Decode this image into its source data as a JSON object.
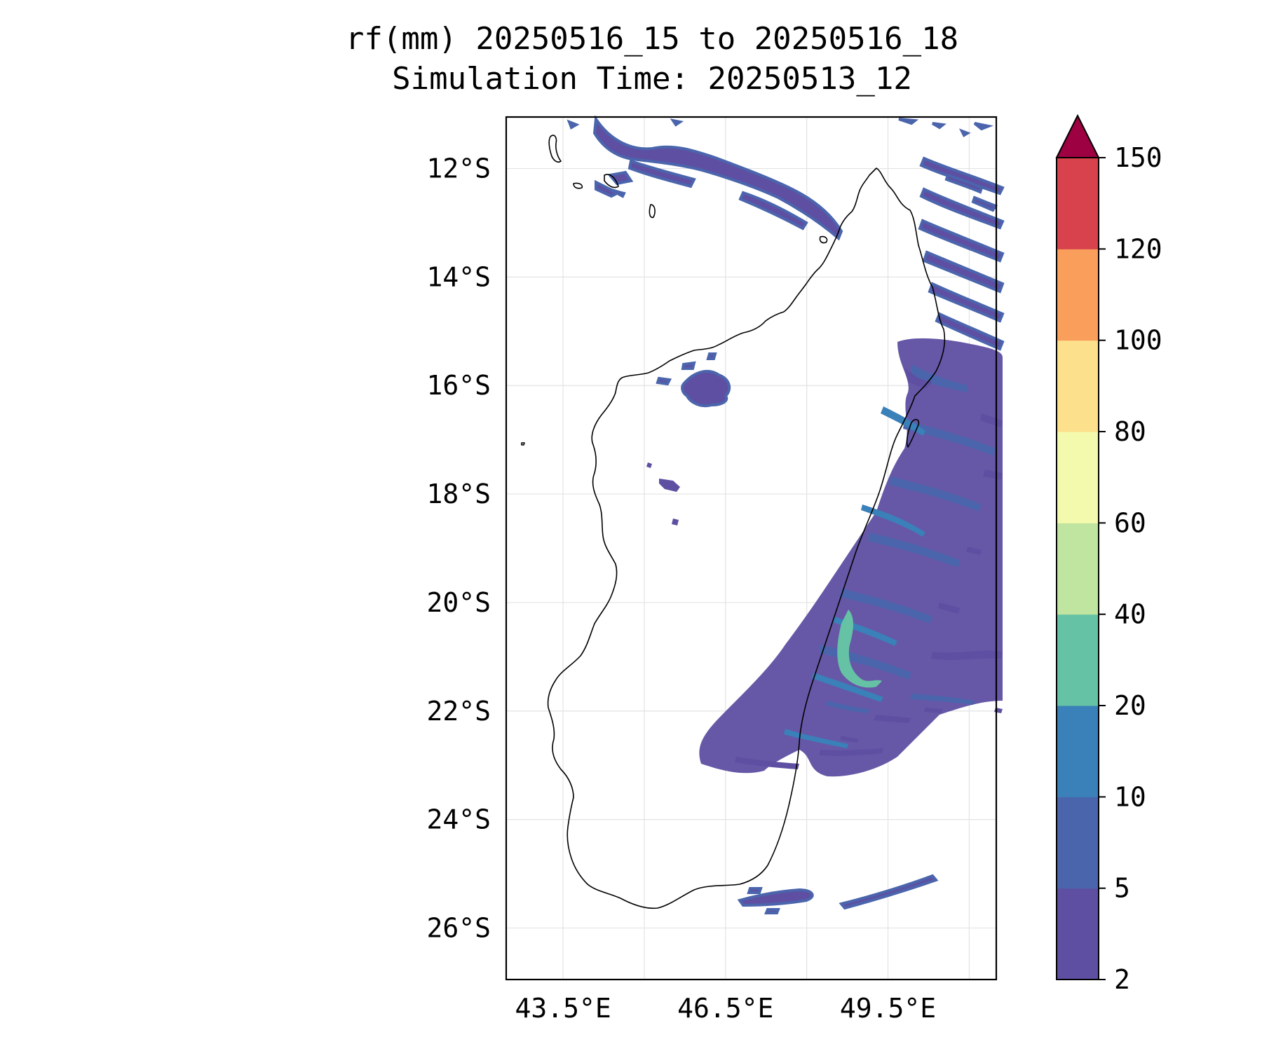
{
  "title": {
    "line1": "rf(mm) 20250516_15 to 20250516_18",
    "line2": "Simulation Time: 20250513_12"
  },
  "map": {
    "extent": {
      "lon_min": 42.45,
      "lon_max": 51.5,
      "lat_min": -26.95,
      "lat_max": -11.05
    },
    "lat_ticks": [
      {
        "value": -12,
        "label": "12°S"
      },
      {
        "value": -14,
        "label": "14°S"
      },
      {
        "value": -16,
        "label": "16°S"
      },
      {
        "value": -18,
        "label": "18°S"
      },
      {
        "value": -20,
        "label": "20°S"
      },
      {
        "value": -22,
        "label": "22°S"
      },
      {
        "value": -24,
        "label": "24°S"
      },
      {
        "value": -26,
        "label": "26°S"
      }
    ],
    "lon_ticks": [
      {
        "value": 43.5,
        "label": "43.5°E"
      },
      {
        "value": 46.5,
        "label": "46.5°E"
      },
      {
        "value": 49.5,
        "label": "49.5°E"
      }
    ],
    "lon_grid": [
      43.5,
      45.0,
      46.5,
      48.0,
      49.5,
      51.0
    ],
    "coastline_color": "#000000",
    "grid_color": "#e3e3e3"
  },
  "colorbar": {
    "levels": [
      "2",
      "5",
      "10",
      "20",
      "40",
      "60",
      "80",
      "100",
      "120",
      "150"
    ],
    "colors": [
      "#5e4fa2",
      "#4b65ad",
      "#3a80b9",
      "#66c2a5",
      "#bfe5a0",
      "#f3faad",
      "#fde08b",
      "#f99e5b",
      "#d7424d"
    ],
    "extend_color": "#9e0142",
    "extend": "max"
  },
  "chart_data": {
    "type": "heatmap",
    "variable": "rf(mm)",
    "units": "mm",
    "period": "20250516_15 to 20250516_18",
    "simulation_time": "20250513_12",
    "levels": [
      2,
      5,
      10,
      20,
      40,
      60,
      80,
      100,
      120,
      150
    ],
    "rain_regions": [
      {
        "area": "north coast band, N of Madagascar",
        "level_min": 2,
        "level_max": 10
      },
      {
        "area": "NE offshore streaks (12.5–15°S, 49.8–51.5°E)",
        "level_min": 2,
        "level_max": 10
      },
      {
        "area": "E coast and offshore (15–22°S)",
        "level_min": 2,
        "level_max": 20
      },
      {
        "area": "SE coast max near 21°S, 48.5°E",
        "level_min": 20,
        "level_max": 40
      },
      {
        "area": "small patch near 16°S, 46°E",
        "level_min": 2,
        "level_max": 10
      },
      {
        "area": "band S of Madagascar (25.4°S, 46.5–50°E)",
        "level_min": 2,
        "level_max": 10
      }
    ]
  }
}
